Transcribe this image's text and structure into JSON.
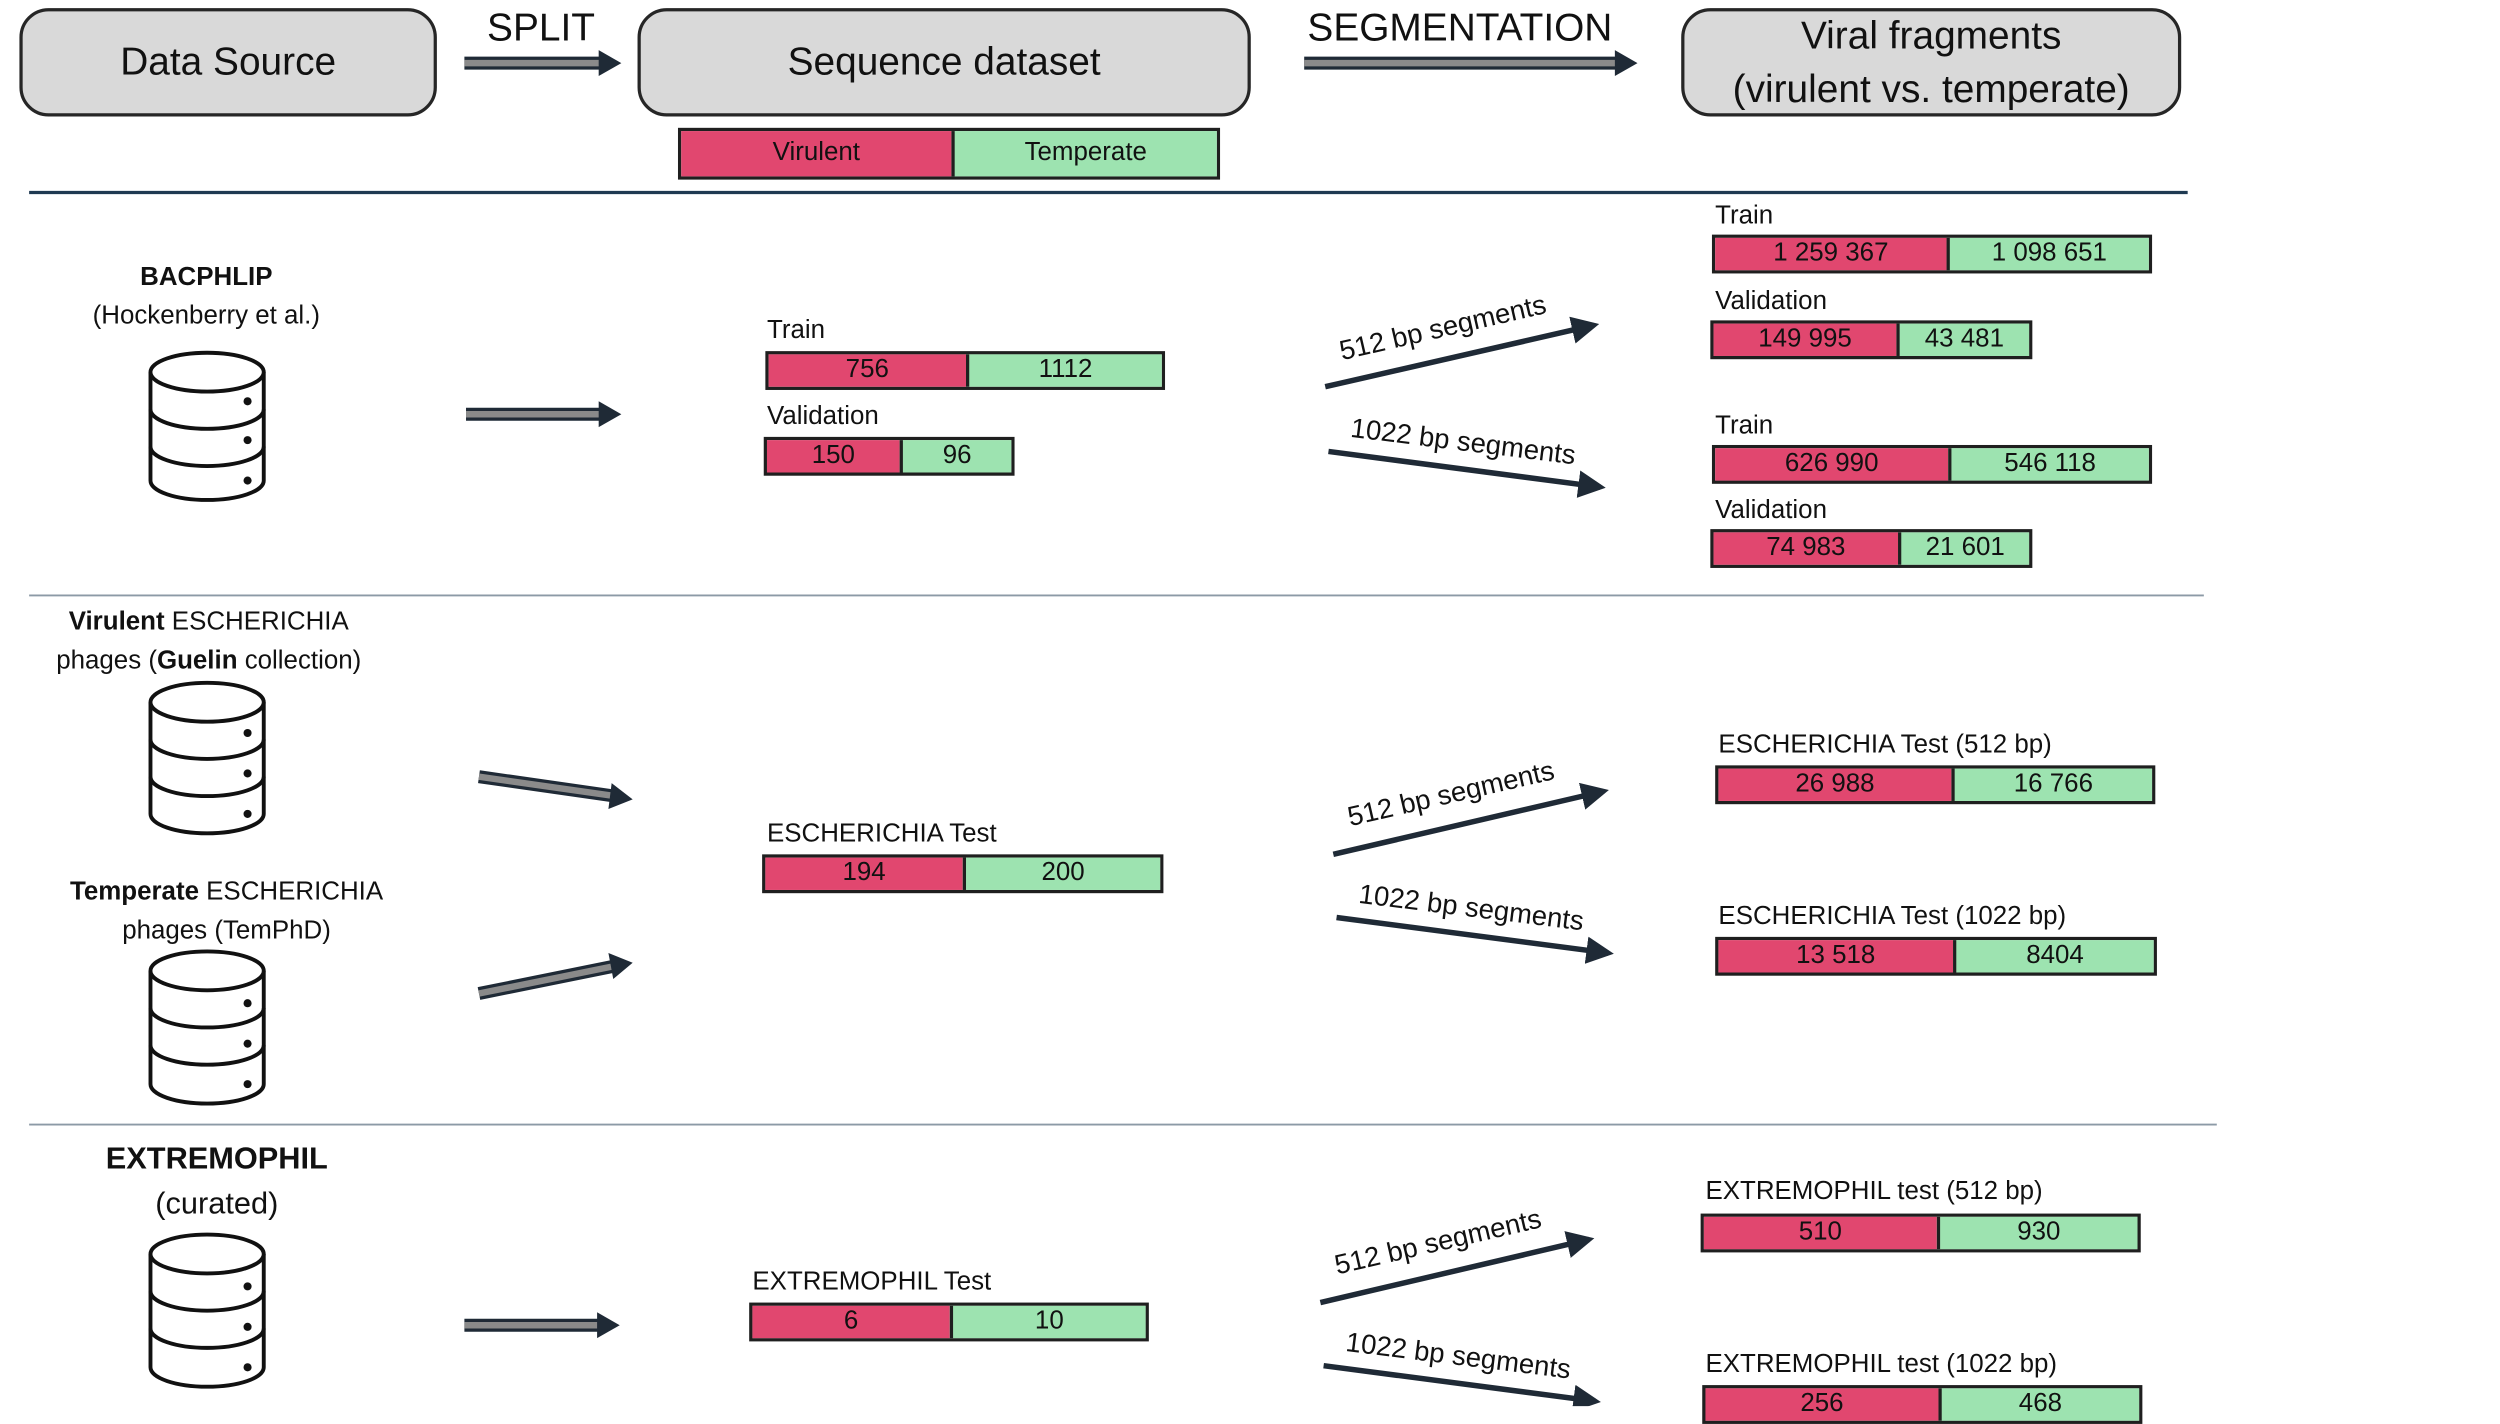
{
  "header": {
    "data_source": "Data Source",
    "split_label": "SPLIT",
    "sequence_dataset": "Sequence dataset",
    "segmentation_label": "SEGMENTATION",
    "viral_fragments_line1": "Viral fragments",
    "viral_fragments_line2": "(virulent vs. temperate)",
    "legend_virulent": "Virulent",
    "legend_temperate": "Temperate"
  },
  "colors": {
    "virulent": "#e1476f",
    "temperate": "#9de3b0"
  },
  "sections": {
    "bacphlip": {
      "name": "BACPHLIP",
      "citation": "(Hockenberry et al.)",
      "train_label": "Train",
      "train": {
        "virulent": "756",
        "temperate": "1112"
      },
      "validation_label": "Validation",
      "validation": {
        "virulent": "150",
        "temperate": "96"
      },
      "seg512_label": "512 bp segments",
      "seg1022_label": "1022 bp segments",
      "frag512_train_label": "Train",
      "frag512_train": {
        "virulent": "1 259 367",
        "temperate": "1 098 651"
      },
      "frag512_val_label": "Validation",
      "frag512_val": {
        "virulent": "149 995",
        "temperate": "43 481"
      },
      "frag1022_train_label": "Train",
      "frag1022_train": {
        "virulent": "626 990",
        "temperate": "546 118"
      },
      "frag1022_val_label": "Validation",
      "frag1022_val": {
        "virulent": "74 983",
        "temperate": "21 601"
      }
    },
    "escherichia": {
      "virulent_bold": "Virulent",
      "virulent_rest1": " ESCHERICHIA",
      "virulent_line2_a": "phages (",
      "virulent_line2_bold": "Guelin",
      "virulent_line2_b": " collection)",
      "temperate_bold": "Temperate",
      "temperate_rest1": " ESCHERICHIA",
      "temperate_line2": "phages (TemPhD)",
      "test_label": "ESCHERICHIA Test",
      "test": {
        "virulent": "194",
        "temperate": "200"
      },
      "seg512_label": "512 bp segments",
      "seg1022_label": "1022 bp segments",
      "frag512_label": "ESCHERICHIA Test (512 bp)",
      "frag512": {
        "virulent": "26 988",
        "temperate": "16 766"
      },
      "frag1022_label": "ESCHERICHIA Test (1022 bp)",
      "frag1022": {
        "virulent": "13 518",
        "temperate": "8404"
      }
    },
    "extremophil": {
      "name": "EXTREMOPHIL",
      "subtitle": "(curated)",
      "test_label": "EXTREMOPHIL Test",
      "test": {
        "virulent": "6",
        "temperate": "10"
      },
      "seg512_label": "512 bp segments",
      "seg1022_label": "1022 bp segments",
      "frag512_label": "EXTREMOPHIL test (512 bp)",
      "frag512": {
        "virulent": "510",
        "temperate": "930"
      },
      "frag1022_label": "EXTREMOPHIL test (1022 bp)",
      "frag1022": {
        "virulent": "256",
        "temperate": "468"
      }
    }
  }
}
